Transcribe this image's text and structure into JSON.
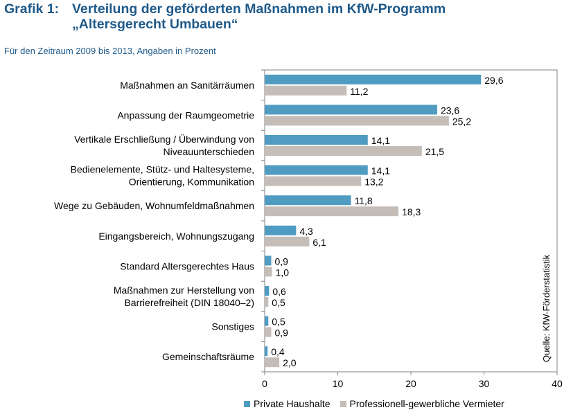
{
  "header": {
    "label": "Grafik 1:",
    "title": "Verteilung der geförderten Maßnahmen im KfW-Programm „Altersgerecht Umbauen“",
    "subtitle": "Für den Zeitraum 2009 bis 2013, Angaben in Prozent"
  },
  "source": "Quelle: KfW-Förderstatistik",
  "colors": {
    "private": "#4f9bc2",
    "professional": "#c4bdb8",
    "title": "#1f5a8a"
  },
  "chart_data": {
    "type": "bar",
    "orientation": "horizontal",
    "title": "Verteilung der geförderten Maßnahmen im KfW-Programm „Altersgerecht Umbauen“",
    "subtitle": "Für den Zeitraum 2009 bis 2013, Angaben in Prozent",
    "categories": [
      [
        "Maßnahmen an Sanitärräumen"
      ],
      [
        "Anpassung der Raumgeometrie"
      ],
      [
        "Vertikale Erschließung / Überwindung von",
        "Niveauunterschieden"
      ],
      [
        "Bedienelemente, Stütz- und Haltesysteme,",
        "Orientierung, Kommunikation"
      ],
      [
        "Wege zu Gebäuden, Wohnumfeldmaßnahmen"
      ],
      [
        "Eingangsbereich, Wohnungszugang"
      ],
      [
        "Standard Altersgerechtes Haus"
      ],
      [
        "Maßnahmen zur Herstellung von",
        "Barrierefreiheit (DIN 18040–2)"
      ],
      [
        "Sonstiges"
      ],
      [
        "Gemeinschaftsräume"
      ]
    ],
    "series": [
      {
        "name": "Private Haushalte",
        "values": [
          29.6,
          23.6,
          14.1,
          14.1,
          11.8,
          4.3,
          0.9,
          0.6,
          0.5,
          0.4
        ],
        "labels": [
          "29,6",
          "23,6",
          "14,1",
          "14,1",
          "11,8",
          "4,3",
          "0,9",
          "0,6",
          "0,5",
          "0,4"
        ]
      },
      {
        "name": "Professionell-gewerbliche Vermieter",
        "values": [
          11.2,
          25.2,
          21.5,
          13.2,
          18.3,
          6.1,
          1.0,
          0.5,
          0.9,
          2.0
        ],
        "labels": [
          "11,2",
          "25,2",
          "21,5",
          "13,2",
          "18,3",
          "6,1",
          "1,0",
          "0,5",
          "0,9",
          "2,0"
        ]
      }
    ],
    "xlim": [
      0,
      40
    ],
    "xticks": [
      0,
      10,
      20,
      30,
      40
    ],
    "xlabel": "",
    "ylabel": "",
    "grid": false,
    "legend": "bottom"
  }
}
